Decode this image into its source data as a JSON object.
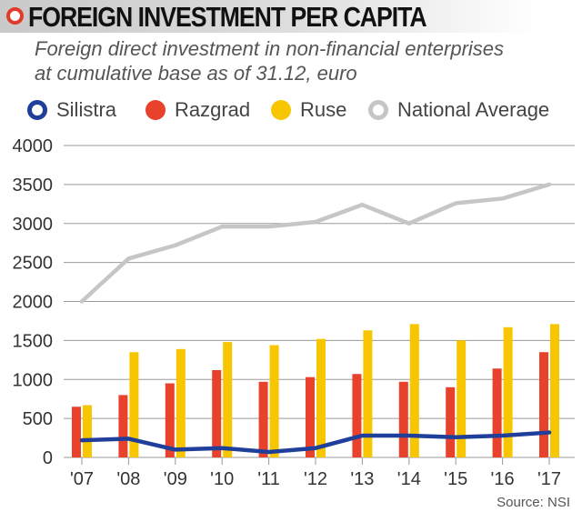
{
  "header": {
    "title": "FOREIGN INVESTMENT PER CAPITA",
    "subtitle_lines": [
      "Foreign direct investment in non-financial enterprises",
      "at cumulative base as of 31.12, euro"
    ]
  },
  "legend": {
    "items": [
      {
        "label": "Silistra",
        "color": "#1f3f9a"
      },
      {
        "label": "Razgrad",
        "color": "#e8412c"
      },
      {
        "label": "Ruse",
        "color": "#f7c600"
      },
      {
        "label": "National Average",
        "color": "#c6c6c6"
      }
    ]
  },
  "source": "Source: NSI",
  "chart_data": {
    "type": "bar",
    "title": "FOREIGN INVESTMENT PER CAPITA",
    "subtitle": "Foreign direct investment in non-financial enterprises at cumulative base as of 31.12, euro",
    "xlabel": "",
    "ylabel": "",
    "categories": [
      "'07",
      "'08",
      "'09",
      "'10",
      "'11",
      "'12",
      "'13",
      "'14",
      "'15",
      "'16",
      "'17"
    ],
    "ylim": [
      0,
      4000
    ],
    "yticks": [
      0,
      500,
      1000,
      1500,
      2000,
      2500,
      3000,
      3500,
      4000
    ],
    "grid": true,
    "legend_position": "top",
    "series": [
      {
        "name": "Silistra",
        "type": "line",
        "color": "#1f3f9a",
        "values": [
          220,
          240,
          100,
          120,
          70,
          120,
          280,
          280,
          260,
          280,
          320
        ]
      },
      {
        "name": "Razgrad",
        "type": "bar",
        "color": "#e8412c",
        "values": [
          650,
          800,
          950,
          1120,
          970,
          1030,
          1070,
          970,
          900,
          1140,
          1350
        ]
      },
      {
        "name": "Ruse",
        "type": "bar",
        "color": "#f7c600",
        "values": [
          670,
          1350,
          1390,
          1480,
          1440,
          1520,
          1630,
          1710,
          1500,
          1670,
          1710
        ]
      },
      {
        "name": "National Average",
        "type": "line",
        "color": "#c6c6c6",
        "values": [
          2000,
          2550,
          2720,
          2960,
          2960,
          3020,
          3240,
          3000,
          3260,
          3320,
          3500
        ]
      }
    ]
  }
}
